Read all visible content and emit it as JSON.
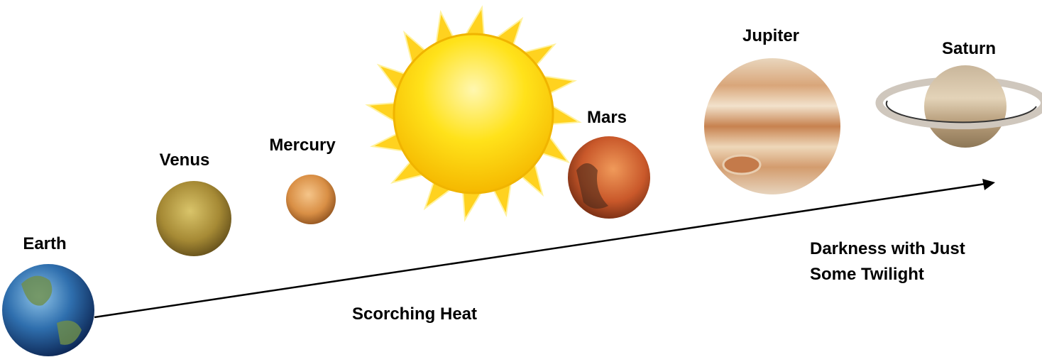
{
  "labels": {
    "earth": "Earth",
    "venus": "Venus",
    "mercury": "Mercury",
    "mars": "Mars",
    "jupiter": "Jupiter",
    "saturn": "Saturn"
  },
  "annotations": {
    "near": "Scorching Heat",
    "far": [
      "Darkness with Just",
      "Some Twilight"
    ]
  }
}
